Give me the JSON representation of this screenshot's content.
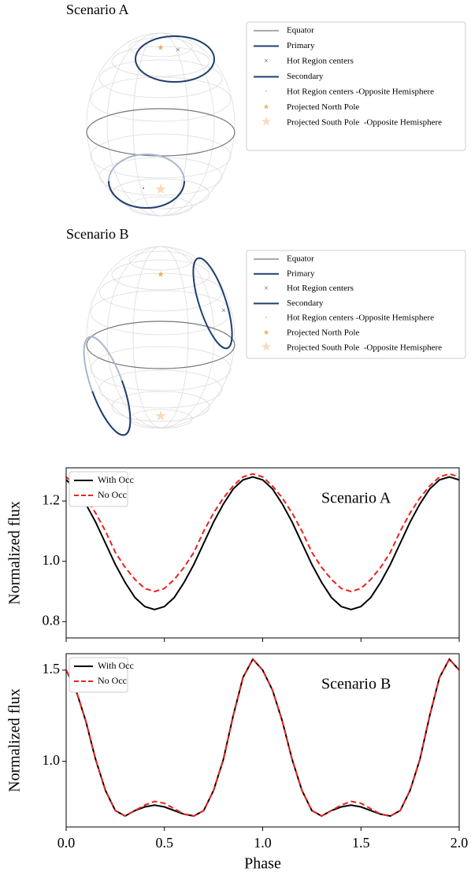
{
  "diagrams": [
    {
      "title": "Scenario A",
      "legend": [
        "Equator",
        "Primary",
        "Hot Region centers",
        "Secondary",
        "Hot Region centers -Opposite Hemisphere",
        "Projected North Pole",
        "Projected South Pole  -Opposite Hemisphere"
      ]
    },
    {
      "title": "Scenario B",
      "legend": [
        "Equator",
        "Primary",
        "Hot Region centers",
        "Secondary",
        "Hot Region centers -Opposite Hemisphere",
        "Projected North Pole",
        "Projected South Pole  -Opposite Hemisphere"
      ]
    }
  ],
  "chart_data": [
    {
      "type": "line",
      "ylabel": "Normalized flux",
      "annotation": "Scenario A",
      "legend": "upper left",
      "x": [
        0,
        0.05,
        0.1,
        0.15,
        0.2,
        0.25,
        0.3,
        0.35,
        0.4,
        0.45,
        0.5,
        0.55,
        0.6,
        0.65,
        0.7,
        0.75,
        0.8,
        0.85,
        0.9,
        0.95,
        1,
        1.05,
        1.1,
        1.15,
        1.2,
        1.25,
        1.3,
        1.35,
        1.4,
        1.45,
        1.5,
        1.55,
        1.6,
        1.65,
        1.7,
        1.75,
        1.8,
        1.85,
        1.9,
        1.95,
        2
      ],
      "series": [
        {
          "name": "With Occ",
          "color": "#000000",
          "linestyle": "solid",
          "values": [
            1.27,
            1.24,
            1.19,
            1.13,
            1.06,
            0.99,
            0.93,
            0.88,
            0.85,
            0.84,
            0.85,
            0.88,
            0.93,
            0.99,
            1.06,
            1.13,
            1.19,
            1.24,
            1.27,
            1.28,
            1.27,
            1.24,
            1.19,
            1.13,
            1.06,
            0.99,
            0.93,
            0.88,
            0.85,
            0.84,
            0.85,
            0.88,
            0.93,
            0.99,
            1.06,
            1.13,
            1.19,
            1.24,
            1.27,
            1.28,
            1.27
          ]
        },
        {
          "name": "No Occ",
          "color": "#e8221d",
          "linestyle": "dashed",
          "values": [
            1.28,
            1.25,
            1.21,
            1.16,
            1.1,
            1.03,
            0.98,
            0.94,
            0.91,
            0.9,
            0.91,
            0.94,
            0.98,
            1.03,
            1.1,
            1.16,
            1.21,
            1.25,
            1.28,
            1.29,
            1.28,
            1.25,
            1.21,
            1.16,
            1.1,
            1.03,
            0.98,
            0.94,
            0.91,
            0.9,
            0.91,
            0.94,
            0.98,
            1.03,
            1.1,
            1.16,
            1.21,
            1.25,
            1.28,
            1.29,
            1.28
          ]
        }
      ],
      "xlim": [
        0,
        2
      ],
      "xticks": [
        0,
        0.5,
        1,
        1.5,
        2
      ],
      "ylim": [
        0.746,
        1.31
      ],
      "yticks": [
        0.8,
        {
          "value": 1.0,
          "label": "1.0"
        },
        1.2
      ]
    },
    {
      "type": "line",
      "ylabel": "Normalized flux",
      "xlabel": "Phase",
      "annotation": "Scenario B",
      "legend": "upper left",
      "x": [
        0,
        0.05,
        0.1,
        0.15,
        0.2,
        0.25,
        0.3,
        0.35,
        0.4,
        0.45,
        0.5,
        0.55,
        0.6,
        0.65,
        0.7,
        0.75,
        0.8,
        0.85,
        0.9,
        0.95,
        1,
        1.05,
        1.1,
        1.15,
        1.2,
        1.25,
        1.3,
        1.35,
        1.4,
        1.45,
        1.5,
        1.55,
        1.6,
        1.65,
        1.7,
        1.75,
        1.8,
        1.85,
        1.9,
        1.95,
        2
      ],
      "series": [
        {
          "name": "With Occ",
          "color": "#000000",
          "linestyle": "solid",
          "values": [
            1.5,
            1.39,
            1.22,
            1.01,
            0.84,
            0.73,
            0.7,
            0.73,
            0.75,
            0.76,
            0.75,
            0.73,
            0.71,
            0.7,
            0.73,
            0.84,
            1.01,
            1.25,
            1.46,
            1.56,
            1.5,
            1.39,
            1.22,
            1.01,
            0.84,
            0.73,
            0.7,
            0.73,
            0.75,
            0.76,
            0.75,
            0.73,
            0.71,
            0.7,
            0.73,
            0.84,
            1.01,
            1.25,
            1.46,
            1.56,
            1.5
          ]
        },
        {
          "name": "No Occ",
          "color": "#e8221d",
          "linestyle": "dashed",
          "values": [
            1.5,
            1.39,
            1.22,
            1.01,
            0.84,
            0.73,
            0.7,
            0.73,
            0.76,
            0.78,
            0.77,
            0.74,
            0.71,
            0.7,
            0.73,
            0.84,
            1.01,
            1.25,
            1.46,
            1.56,
            1.5,
            1.39,
            1.22,
            1.01,
            0.84,
            0.73,
            0.7,
            0.73,
            0.76,
            0.78,
            0.77,
            0.74,
            0.71,
            0.7,
            0.73,
            0.84,
            1.01,
            1.25,
            1.46,
            1.56,
            1.5
          ]
        }
      ],
      "xlim": [
        0,
        2
      ],
      "xticks": [
        {
          "value": 0,
          "label": "0.0"
        },
        0.5,
        {
          "value": 1,
          "label": "1.0"
        },
        1.5,
        {
          "value": 2,
          "label": "2.0"
        }
      ],
      "ylim": [
        0.64,
        1.59
      ],
      "yticks": [
        {
          "value": 1.0,
          "label": "1.0"
        },
        1.5
      ]
    }
  ]
}
